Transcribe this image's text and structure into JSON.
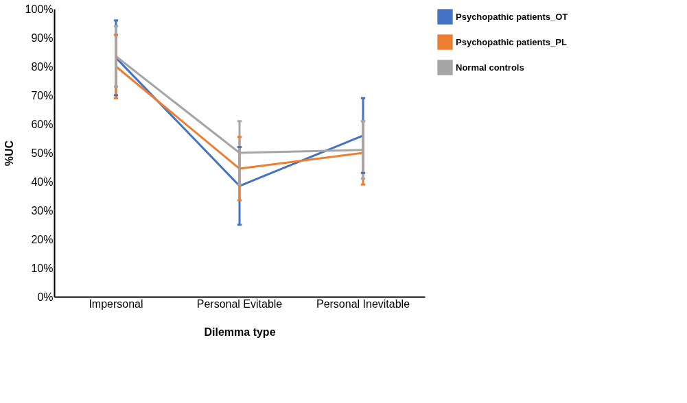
{
  "chart_data": {
    "type": "line",
    "xlabel": "Dilemma type",
    "ylabel": "%UC",
    "categories": [
      "Impersonal",
      "Personal Evitable",
      "Personal Inevitable"
    ],
    "series": [
      {
        "name": "Psychopathic patients_OT",
        "color": "#4472c4",
        "values": [
          83,
          38.5,
          56
        ],
        "errors": [
          13,
          13.5,
          13
        ]
      },
      {
        "name": "Psychopathic patients_PL",
        "color": "#ed7d31",
        "values": [
          80,
          44.5,
          50
        ],
        "errors": [
          11,
          11,
          11
        ]
      },
      {
        "name": "Normal controls",
        "color": "#a5a5a5",
        "values": [
          83.5,
          50,
          51
        ],
        "errors": [
          10.5,
          11,
          10
        ]
      }
    ],
    "ylim": [
      0,
      100
    ],
    "yticks": [
      {
        "value": 0,
        "label": "0%"
      },
      {
        "value": 10,
        "label": "10%"
      },
      {
        "value": 20,
        "label": "20%"
      },
      {
        "value": 30,
        "label": "30%"
      },
      {
        "value": 40,
        "label": "40%"
      },
      {
        "value": 50,
        "label": "50%"
      },
      {
        "value": 60,
        "label": "60%"
      },
      {
        "value": 70,
        "label": "70%"
      },
      {
        "value": 80,
        "label": "80%"
      },
      {
        "value": 90,
        "label": "90%"
      },
      {
        "value": 100,
        "label": "100%"
      }
    ],
    "grid": false,
    "legend": "right",
    "marker": "none",
    "line_style": "solid"
  }
}
